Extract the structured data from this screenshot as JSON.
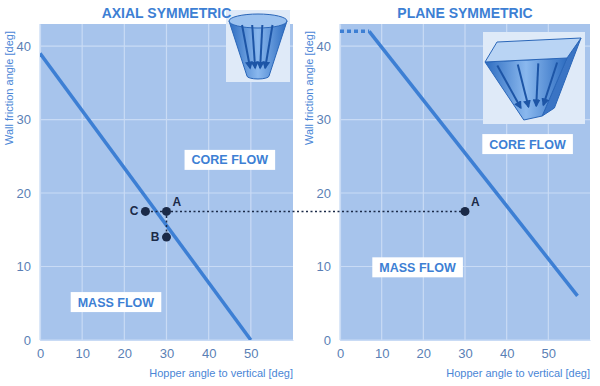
{
  "chart_data": [
    {
      "type": "line",
      "title": "AXIAL SYMMETRIC",
      "x_label": "Hopper angle to vertical [deg]",
      "y_label": "Wall friction angle [deg]",
      "series": [
        {
          "x": [
            0,
            50
          ],
          "values": [
            39,
            0
          ],
          "color": "#3d7fd4",
          "line_style": "solid"
        }
      ],
      "points": [
        {
          "label": "A",
          "x": 30,
          "y": 17.5
        },
        {
          "label": "B",
          "x": 30,
          "y": 14
        },
        {
          "label": "C",
          "x": 25,
          "y": 17.5
        }
      ],
      "regions": [
        "CORE FLOW",
        "MASS FLOW"
      ],
      "xlim": [
        0,
        60
      ],
      "ylim": [
        0,
        43
      ],
      "xticks": [
        0,
        10,
        20,
        30,
        40,
        50
      ],
      "yticks": [
        0,
        10,
        20,
        30,
        40
      ],
      "grid": true
    },
    {
      "type": "line",
      "title": "PLANE SYMMETRIC",
      "x_label": "Hopper angle to vertical [deg]",
      "y_label": "Wall friction angle [deg]",
      "series": [
        {
          "x": [
            0,
            7
          ],
          "values": [
            42,
            42
          ],
          "color": "#3d7fd4",
          "line_style": "dotted"
        },
        {
          "x": [
            7,
            57
          ],
          "values": [
            42,
            6
          ],
          "color": "#3d7fd4",
          "line_style": "solid"
        }
      ],
      "points": [
        {
          "label": "A",
          "x": 30,
          "y": 17.5
        }
      ],
      "regions": [
        "CORE FLOW",
        "MASS FLOW"
      ],
      "xlim": [
        0,
        60
      ],
      "ylim": [
        0,
        43
      ],
      "xticks": [
        0,
        10,
        20,
        30,
        40,
        50
      ],
      "yticks": [
        0,
        10,
        20,
        30,
        40
      ],
      "grid": true
    }
  ]
}
